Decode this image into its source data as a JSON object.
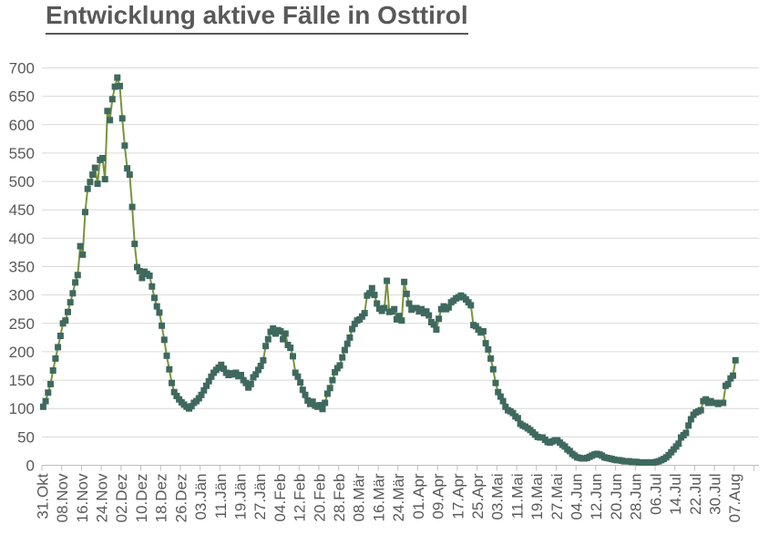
{
  "chart_data": {
    "type": "line",
    "title": "Entwicklung aktive Fälle in Osttirol",
    "xlabel": "",
    "ylabel": "",
    "ylim": [
      0,
      700
    ],
    "y_tick_step": 50,
    "y_tick_labels": [
      "0",
      "50",
      "100",
      "150",
      "200",
      "250",
      "300",
      "350",
      "400",
      "450",
      "500",
      "550",
      "600",
      "650",
      "700"
    ],
    "x_tick_interval_days": 8,
    "x_tick_labels": [
      "31.Okt",
      "08.Nov",
      "16.Nov",
      "24.Nov",
      "02.Dez",
      "10.Dez",
      "18.Dez",
      "26.Dez",
      "03.Jän",
      "11.Jän",
      "19.Jän",
      "27.Jän",
      "04.Feb",
      "12.Feb",
      "20.Feb",
      "28.Feb",
      "08.Mär",
      "16.Mär",
      "24.Mär",
      "01.Apr",
      "09.Apr",
      "17.Apr",
      "25.Apr",
      "03.Mai",
      "11.Mai",
      "19.Mai",
      "27.Mai",
      "04.Jun",
      "12.Jun",
      "20.Jun",
      "28.Jun",
      "06.Jul",
      "14.Jul",
      "22.Jul",
      "30.Jul",
      "07.Aug"
    ],
    "grid": "horizontal",
    "legend_position": "none",
    "marker_shape": "square",
    "line_color": "#76953A",
    "marker_color": "#3F695E",
    "gridline_color": "#D9D9D9",
    "axis_color": "#BFBFBF",
    "axis_label_color": "#595959",
    "title_color": "#595959",
    "values": [
      103,
      113,
      128,
      143,
      167,
      188,
      208,
      228,
      250,
      255,
      270,
      287,
      303,
      322,
      335,
      386,
      371,
      446,
      487,
      499,
      512,
      524,
      496,
      538,
      541,
      504,
      624,
      608,
      645,
      667,
      683,
      668,
      611,
      563,
      523,
      512,
      455,
      390,
      349,
      342,
      330,
      341,
      337,
      334,
      315,
      295,
      280,
      269,
      246,
      221,
      193,
      169,
      145,
      129,
      122,
      116,
      111,
      107,
      103,
      100,
      104,
      110,
      113,
      118,
      124,
      132,
      140,
      148,
      156,
      163,
      168,
      172,
      177,
      170,
      163,
      159,
      162,
      160,
      163,
      157,
      159,
      150,
      145,
      137,
      143,
      155,
      160,
      168,
      175,
      185,
      210,
      222,
      235,
      241,
      232,
      238,
      236,
      222,
      232,
      212,
      207,
      192,
      163,
      156,
      146,
      133,
      124,
      114,
      108,
      112,
      105,
      103,
      106,
      99,
      110,
      126,
      136,
      150,
      164,
      171,
      176,
      190,
      203,
      214,
      225,
      240,
      249,
      255,
      257,
      262,
      268,
      299,
      303,
      312,
      300,
      285,
      276,
      272,
      277,
      325,
      270,
      271,
      275,
      257,
      263,
      255,
      323,
      302,
      285,
      274,
      277,
      277,
      271,
      275,
      268,
      271,
      264,
      252,
      248,
      239,
      258,
      275,
      280,
      275,
      278,
      287,
      290,
      294,
      296,
      299,
      296,
      292,
      287,
      282,
      247,
      245,
      239,
      234,
      236,
      215,
      204,
      188,
      169,
      145,
      129,
      121,
      113,
      103,
      97,
      95,
      92,
      86,
      83,
      73,
      70,
      68,
      65,
      62,
      58,
      54,
      50,
      49,
      49,
      45,
      41,
      40,
      42,
      44,
      44,
      40,
      36,
      33,
      28,
      25,
      20,
      17,
      14,
      13,
      12,
      12,
      13,
      15,
      17,
      19,
      20,
      19,
      17,
      14,
      13,
      12,
      11,
      10,
      9,
      9,
      8,
      7,
      7,
      7,
      6,
      6,
      6,
      5,
      5,
      5,
      5,
      5,
      5,
      5,
      6,
      7,
      9,
      11,
      14,
      18,
      23,
      28,
      33,
      38,
      49,
      53,
      57,
      70,
      81,
      89,
      93,
      95,
      97,
      113,
      116,
      110,
      113,
      110,
      110,
      108,
      110,
      110,
      140,
      143,
      153,
      158,
      185
    ]
  }
}
